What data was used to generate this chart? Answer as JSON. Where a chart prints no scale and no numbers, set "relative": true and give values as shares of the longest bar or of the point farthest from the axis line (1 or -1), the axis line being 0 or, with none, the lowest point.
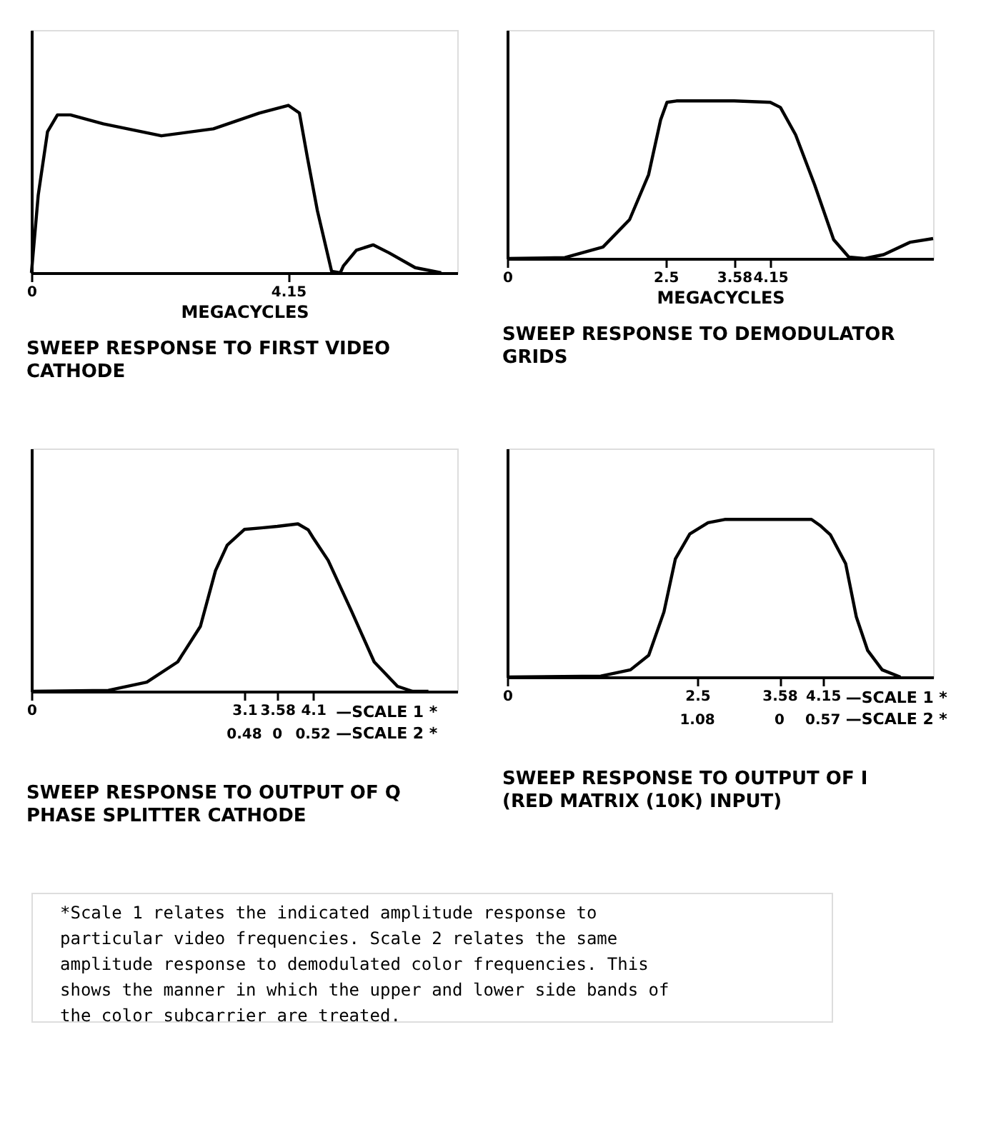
{
  "chart_data": [
    {
      "type": "line",
      "relative": true,
      "title": "SWEEP RESPONSE TO FIRST VIDEO CATHODE",
      "xlabel": "MEGACYCLES",
      "xlim": [
        0,
        6.88
      ],
      "xticks": [
        0,
        4.15
      ],
      "grid": false,
      "marker": "none",
      "line_style": "solid",
      "series": [
        {
          "color": "#000000",
          "x": [
            0,
            0.11,
            0.26,
            0.42,
            0.63,
            1.16,
            2.1,
            2.94,
            3.68,
            4.15,
            4.33,
            4.46,
            4.62,
            4.85,
            4.99,
            5.04,
            5.25,
            5.52,
            5.78,
            6.2,
            6.62
          ],
          "values": [
            0,
            0.465,
            0.843,
            0.943,
            0.943,
            0.89,
            0.818,
            0.86,
            0.954,
            1,
            0.954,
            0.686,
            0.371,
            0.009,
            0,
            0.041,
            0.135,
            0.167,
            0.119,
            0.031,
            0
          ]
        }
      ]
    },
    {
      "type": "line",
      "relative": true,
      "title": "SWEEP RESPONSE TO DEMODULATOR GRIDS",
      "xlabel": "MEGACYCLES",
      "xlim": [
        0,
        6.72
      ],
      "xticks": [
        0,
        2.5,
        3.58,
        4.15
      ],
      "grid": false,
      "marker": "none",
      "line_style": "solid",
      "series": [
        {
          "color": "#000000",
          "x": [
            0,
            0.91,
            1.51,
            1.93,
            2.23,
            2.42,
            2.52,
            2.67,
            3.58,
            4.15,
            4.31,
            4.55,
            4.85,
            5.15,
            5.39,
            5.64,
            5.94,
            6.36,
            6.72
          ],
          "values": [
            0,
            0.006,
            0.073,
            0.247,
            0.532,
            0.88,
            0.991,
            1,
            1,
            0.991,
            0.959,
            0.785,
            0.468,
            0.12,
            0.009,
            0,
            0.025,
            0.104,
            0.127
          ]
        }
      ]
    },
    {
      "type": "line",
      "relative": true,
      "title": "SWEEP RESPONSE TO OUTPUT OF Q PHASE SPLITTER CATHODE",
      "xlim": [
        0,
        6.2
      ],
      "xticks": [
        0,
        3.1,
        3.58,
        4.1
      ],
      "grid": false,
      "marker": "none",
      "line_style": "solid",
      "annotations": [
        "0.48",
        "0",
        "0.52",
        "—SCALE 1 *",
        "—SCALE 2 *"
      ],
      "series": [
        {
          "color": "#000000",
          "x": [
            0,
            1.12,
            1.68,
            2.13,
            2.46,
            2.68,
            2.85,
            3.1,
            3.35,
            3.58,
            3.88,
            4.03,
            4.1,
            4.32,
            4.66,
            4.99,
            5.33,
            5.55,
            5.78
          ],
          "values": [
            0,
            0.006,
            0.055,
            0.176,
            0.388,
            0.721,
            0.873,
            0.967,
            0.976,
            0.985,
            1,
            0.964,
            0.918,
            0.782,
            0.479,
            0.176,
            0.03,
            0,
            0
          ]
        }
      ]
    },
    {
      "type": "line",
      "relative": true,
      "title": "SWEEP RESPONSE TO OUTPUT OF I (RED MATRIX (10K) INPUT)",
      "xlim": [
        0,
        5.6
      ],
      "xticks": [
        0,
        2.5,
        3.58,
        4.15
      ],
      "grid": false,
      "marker": "none",
      "line_style": "solid",
      "annotations": [
        "1.08",
        "0",
        "0.57",
        "—SCALE 1 *",
        "—SCALE 2 *",
        "*Scale 1 relates the indicated amplitude response to particular video frequencies. Scale 2 relates the same amplitude response to demodulated color frequencies. This shows the manner in which the upper and lower side bands of the color subcarrier are treated."
      ],
      "series": [
        {
          "color": "#000000",
          "x": [
            0,
            1.23,
            1.62,
            1.86,
            2.06,
            2.21,
            2.4,
            2.64,
            2.86,
            3.58,
            4.0,
            4.11,
            4.25,
            4.45,
            4.59,
            4.74,
            4.93,
            5.17
          ],
          "values": [
            0,
            0.006,
            0.046,
            0.138,
            0.413,
            0.749,
            0.908,
            0.979,
            1,
            1,
            1,
            0.963,
            0.902,
            0.719,
            0.382,
            0.168,
            0.046,
            0
          ]
        }
      ]
    }
  ]
}
